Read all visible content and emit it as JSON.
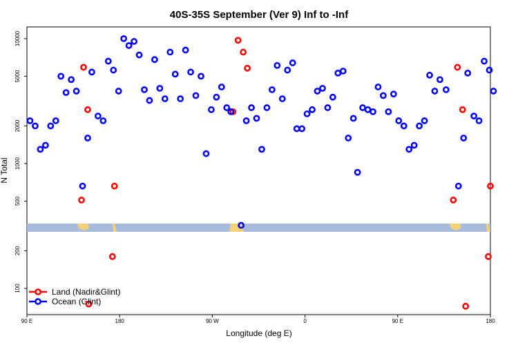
{
  "chart_data": {
    "type": "scatter",
    "title": "40S-35S September (Ver 9)   Inf to -Inf",
    "xlabel": "Longitude (deg E)",
    "ylabel": "N Total",
    "x_ticks": [
      {
        "value": 90,
        "label": "90 E"
      },
      {
        "value": 180,
        "label": "180"
      },
      {
        "value": 270,
        "label": "90 W"
      },
      {
        "value": 360,
        "label": "0"
      },
      {
        "value": 450,
        "label": "90 E"
      },
      {
        "value": 540,
        "label": "180"
      }
    ],
    "xlim": [
      90,
      540
    ],
    "y_scale": "log",
    "ylim": [
      60,
      12000
    ],
    "y_ticks": [
      100,
      200,
      500,
      1000,
      2000,
      5000,
      10000
    ],
    "legend": {
      "placement": "bottom-left",
      "entries": [
        {
          "label": "Land (Nadir&Glint)",
          "color": "#ff0000"
        },
        {
          "label": "Ocean (Glint)",
          "color": "#0000ff"
        }
      ]
    },
    "series": [
      {
        "name": "Land (Nadir&Glint)",
        "color": "#ff0000",
        "points": [
          [
            143,
            510
          ],
          [
            145,
            5900
          ],
          [
            149,
            2700
          ],
          [
            150,
            75
          ],
          [
            173,
            180
          ],
          [
            175,
            660
          ],
          [
            290,
            2600
          ],
          [
            295,
            9700
          ],
          [
            300,
            7800
          ],
          [
            304,
            5800
          ],
          [
            504,
            510
          ],
          [
            508,
            5900
          ],
          [
            513,
            2700
          ],
          [
            516,
            72
          ],
          [
            538,
            180
          ],
          [
            540,
            660
          ]
        ]
      },
      {
        "name": "Ocean (Glint)",
        "color": "#0000ff",
        "points": [
          [
            93,
            2200
          ],
          [
            98,
            2000
          ],
          [
            103,
            1300
          ],
          [
            108,
            1400
          ],
          [
            113,
            2000
          ],
          [
            118,
            2200
          ],
          [
            123,
            5000
          ],
          [
            128,
            3700
          ],
          [
            133,
            4700
          ],
          [
            138,
            3800
          ],
          [
            144,
            660
          ],
          [
            149,
            1600
          ],
          [
            153,
            5400
          ],
          [
            159,
            2400
          ],
          [
            164,
            2200
          ],
          [
            169,
            6600
          ],
          [
            174,
            5600
          ],
          [
            179,
            3800
          ],
          [
            184,
            10000
          ],
          [
            189,
            8800
          ],
          [
            194,
            9500
          ],
          [
            199,
            7400
          ],
          [
            204,
            3900
          ],
          [
            209,
            3200
          ],
          [
            214,
            6800
          ],
          [
            219,
            4000
          ],
          [
            224,
            3300
          ],
          [
            229,
            7800
          ],
          [
            234,
            5200
          ],
          [
            239,
            3300
          ],
          [
            244,
            8100
          ],
          [
            249,
            5400
          ],
          [
            254,
            3500
          ],
          [
            259,
            5000
          ],
          [
            264,
            1200
          ],
          [
            269,
            2700
          ],
          [
            274,
            3400
          ],
          [
            279,
            4100
          ],
          [
            284,
            2800
          ],
          [
            288,
            2600
          ],
          [
            298,
            320
          ],
          [
            303,
            2200
          ],
          [
            308,
            2800
          ],
          [
            313,
            2300
          ],
          [
            318,
            1300
          ],
          [
            323,
            2800
          ],
          [
            328,
            3900
          ],
          [
            333,
            6100
          ],
          [
            338,
            3300
          ],
          [
            343,
            5600
          ],
          [
            348,
            6400
          ],
          [
            352,
            1900
          ],
          [
            357,
            1900
          ],
          [
            362,
            2500
          ],
          [
            367,
            2700
          ],
          [
            372,
            3800
          ],
          [
            377,
            4000
          ],
          [
            382,
            2800
          ],
          [
            387,
            3400
          ],
          [
            392,
            5300
          ],
          [
            397,
            5500
          ],
          [
            402,
            1600
          ],
          [
            407,
            2300
          ],
          [
            411,
            850
          ],
          [
            416,
            2800
          ],
          [
            421,
            2700
          ],
          [
            426,
            2600
          ],
          [
            431,
            4100
          ],
          [
            436,
            3500
          ],
          [
            441,
            2600
          ],
          [
            446,
            3600
          ],
          [
            451,
            2200
          ],
          [
            456,
            2000
          ],
          [
            461,
            1300
          ],
          [
            466,
            1400
          ],
          [
            471,
            2000
          ],
          [
            476,
            2200
          ],
          [
            481,
            5100
          ],
          [
            486,
            3800
          ],
          [
            491,
            4700
          ],
          [
            497,
            3900
          ],
          [
            509,
            660
          ],
          [
            514,
            1600
          ],
          [
            518,
            5300
          ],
          [
            524,
            2400
          ],
          [
            529,
            2200
          ],
          [
            534,
            6600
          ],
          [
            539,
            5600
          ],
          [
            543,
            3800
          ]
        ]
      }
    ]
  }
}
